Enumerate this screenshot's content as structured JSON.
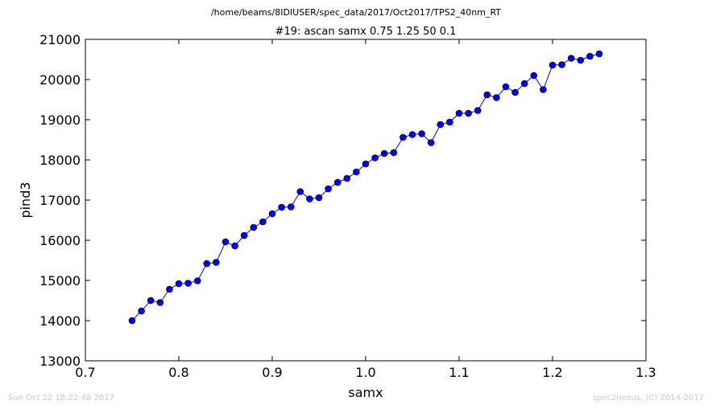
{
  "chart_data": {
    "type": "line",
    "suptitle": "/home/beams/8IDIUSER/spec_data/2017/Oct2017/TPS2_40nm_RT",
    "title": "#19: ascan  samx 0.75 1.25  50 0.1",
    "xlabel": "samx",
    "ylabel": "pind3",
    "xlim": [
      0.7,
      1.3
    ],
    "ylim": [
      13000,
      21000
    ],
    "xticks": [
      "0.7",
      "0.8",
      "0.9",
      "1.0",
      "1.1",
      "1.2",
      "1.3"
    ],
    "yticks": [
      "13000",
      "14000",
      "15000",
      "16000",
      "17000",
      "18000",
      "19000",
      "20000",
      "21000"
    ],
    "grid": false,
    "series": [
      {
        "color": "#0000ff",
        "marker": "circle",
        "x": [
          0.75,
          0.76,
          0.77,
          0.78,
          0.79,
          0.8,
          0.81,
          0.82,
          0.83,
          0.84,
          0.85,
          0.86,
          0.87,
          0.88,
          0.89,
          0.9,
          0.91,
          0.92,
          0.93,
          0.94,
          0.95,
          0.96,
          0.97,
          0.98,
          0.99,
          1.0,
          1.01,
          1.02,
          1.03,
          1.04,
          1.05,
          1.06,
          1.07,
          1.08,
          1.09,
          1.1,
          1.11,
          1.12,
          1.13,
          1.14,
          1.15,
          1.16,
          1.17,
          1.18,
          1.19,
          1.2,
          1.21,
          1.22,
          1.23,
          1.24,
          1.25
        ],
        "y": [
          14000,
          14240,
          14500,
          14450,
          14780,
          14920,
          14930,
          14990,
          15420,
          15450,
          15960,
          15860,
          16120,
          16320,
          16460,
          16660,
          16820,
          16830,
          17210,
          17030,
          17060,
          17280,
          17440,
          17540,
          17700,
          17900,
          18050,
          18160,
          18180,
          18560,
          18630,
          18650,
          18430,
          18880,
          18940,
          19160,
          19160,
          19230,
          19620,
          19550,
          19820,
          19680,
          19900,
          20100,
          19750,
          20360,
          20370,
          20530,
          20480,
          20580,
          20640
        ]
      }
    ]
  },
  "footer": {
    "left": "Sun Oct 22 18:22:48 2017",
    "right": "spec2nexus, (C) 2014-2017"
  }
}
